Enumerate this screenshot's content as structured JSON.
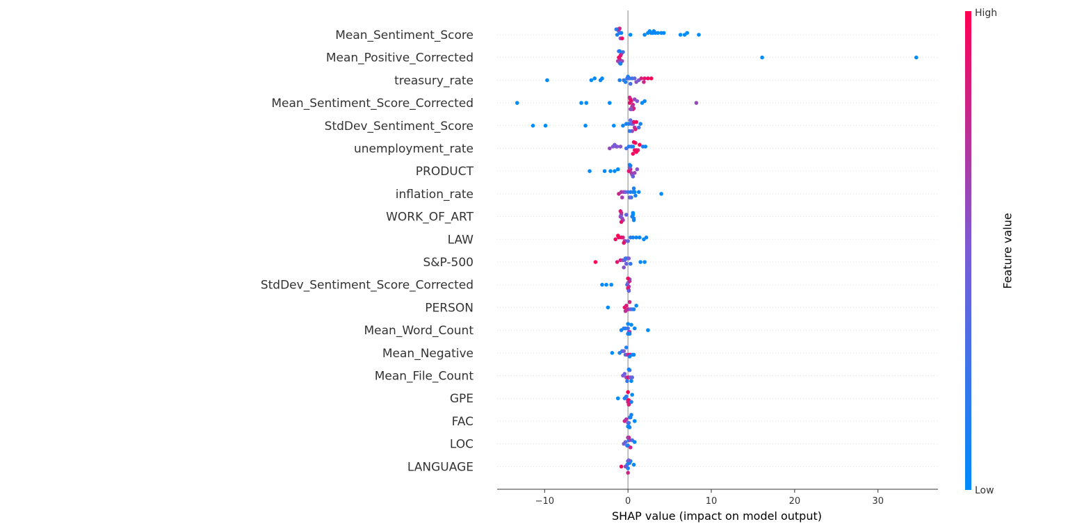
{
  "chart_data": {
    "type": "scatter",
    "subtype": "shap-beeswarm",
    "title": "",
    "xlabel": "SHAP value (impact on model output)",
    "ylabel": "",
    "xlim": [
      -15.7,
      37.2
    ],
    "xticks": [
      -10,
      0,
      10,
      20,
      30
    ],
    "xtick_labels": [
      "−10",
      "0",
      "10",
      "20",
      "30"
    ],
    "grid": false,
    "colorbar": {
      "title": "Feature value",
      "high_label": "High",
      "low_label": "Low",
      "low_color": "#008bfb",
      "high_color": "#ff0052"
    },
    "features": [
      {
        "name": "Mean_Sentiment_Score",
        "points": [
          [
            -1.3,
            0.1
          ],
          [
            -1.0,
            0.15
          ],
          [
            -0.8,
            0.05
          ],
          [
            -1.1,
            0.3
          ],
          [
            -0.9,
            0.5
          ],
          [
            -1.2,
            0.9
          ],
          [
            -0.7,
            0.95
          ],
          [
            -1.0,
            0.8
          ],
          [
            -1.4,
            0.2
          ],
          [
            0.3,
            0.0
          ],
          [
            2.0,
            0.0
          ],
          [
            2.4,
            0.0
          ],
          [
            2.8,
            0.0
          ],
          [
            3.0,
            0.0
          ],
          [
            3.3,
            0.0
          ],
          [
            3.6,
            0.0
          ],
          [
            4.0,
            0.0
          ],
          [
            4.3,
            0.0
          ],
          [
            6.3,
            0.0
          ],
          [
            6.8,
            0.0
          ],
          [
            7.1,
            0.0
          ],
          [
            8.5,
            0.0
          ],
          [
            3.1,
            0.05
          ],
          [
            2.6,
            0.0
          ]
        ]
      },
      {
        "name": "Mean_Positive_Corrected",
        "points": [
          [
            -1.1,
            0.95
          ],
          [
            -0.9,
            0.9
          ],
          [
            -1.0,
            0.85
          ],
          [
            -0.8,
            0.8
          ],
          [
            -1.2,
            0.7
          ],
          [
            -0.7,
            0.6
          ],
          [
            -1.0,
            0.5
          ],
          [
            -1.1,
            0.4
          ],
          [
            -0.6,
            0.3
          ],
          [
            -1.0,
            0.25
          ],
          [
            -0.9,
            0.1
          ],
          [
            -1.0,
            0.05
          ],
          [
            16.1,
            0.0
          ],
          [
            34.6,
            0.0
          ]
        ]
      },
      {
        "name": "treasury_rate",
        "points": [
          [
            -9.7,
            0.0
          ],
          [
            -4.4,
            0.0
          ],
          [
            -4.0,
            0.0
          ],
          [
            -3.3,
            0.05
          ],
          [
            -3.1,
            0.0
          ],
          [
            -1.0,
            0.1
          ],
          [
            -0.5,
            0.2
          ],
          [
            -0.1,
            0.25
          ],
          [
            0.2,
            0.3
          ],
          [
            0.5,
            0.2
          ],
          [
            -0.3,
            0.1
          ],
          [
            0.0,
            0.15
          ],
          [
            0.8,
            0.4
          ],
          [
            1.3,
            0.5
          ],
          [
            1.6,
            0.85
          ],
          [
            2.0,
            0.9
          ],
          [
            2.4,
            0.95
          ],
          [
            2.8,
            1.0
          ],
          [
            1.9,
            0.8
          ],
          [
            1.0,
            0.55
          ],
          [
            0.3,
            0.3
          ]
        ]
      },
      {
        "name": "Mean_Sentiment_Score_Corrected",
        "points": [
          [
            -13.3,
            0.0
          ],
          [
            -5.6,
            0.0
          ],
          [
            -5.0,
            0.0
          ],
          [
            -2.2,
            0.0
          ],
          [
            0.2,
            0.9
          ],
          [
            0.4,
            0.85
          ],
          [
            0.6,
            0.8
          ],
          [
            0.3,
            0.95
          ],
          [
            0.5,
            0.7
          ],
          [
            0.8,
            0.6
          ],
          [
            1.1,
            0.5
          ],
          [
            0.7,
            0.75
          ],
          [
            0.2,
            0.8
          ],
          [
            0.6,
            0.9
          ],
          [
            0.3,
            0.65
          ],
          [
            1.7,
            0.0
          ],
          [
            2.0,
            0.05
          ],
          [
            8.2,
            0.6
          ],
          [
            0.4,
            0.55
          ]
        ]
      },
      {
        "name": "StdDev_Sentiment_Score",
        "points": [
          [
            -11.4,
            0.0
          ],
          [
            -9.9,
            0.0
          ],
          [
            -5.1,
            0.0
          ],
          [
            -1.7,
            0.0
          ],
          [
            -0.6,
            0.05
          ],
          [
            -0.2,
            0.1
          ],
          [
            0.1,
            0.15
          ],
          [
            0.4,
            0.3
          ],
          [
            0.6,
            0.5
          ],
          [
            0.8,
            0.7
          ],
          [
            0.7,
            0.9
          ],
          [
            1.0,
            0.95
          ],
          [
            0.9,
            0.85
          ],
          [
            1.3,
            0.3
          ],
          [
            1.5,
            0.1
          ],
          [
            0.5,
            0.6
          ],
          [
            0.3,
            0.4
          ],
          [
            0.2,
            0.2
          ]
        ]
      },
      {
        "name": "unemployment_rate",
        "points": [
          [
            -2.2,
            0.6
          ],
          [
            -1.8,
            0.5
          ],
          [
            -1.4,
            0.6
          ],
          [
            -1.3,
            0.5
          ],
          [
            -0.9,
            0.55
          ],
          [
            -1.6,
            0.5
          ],
          [
            -0.2,
            0.3
          ],
          [
            0.1,
            0.15
          ],
          [
            0.4,
            0.2
          ],
          [
            0.6,
            0.1
          ],
          [
            0.8,
            0.9
          ],
          [
            1.0,
            0.95
          ],
          [
            1.2,
            0.85
          ],
          [
            1.0,
            1.0
          ],
          [
            0.9,
            0.9
          ],
          [
            1.4,
            1.0
          ],
          [
            1.8,
            0.1
          ],
          [
            2.1,
            0.05
          ],
          [
            0.6,
            0.95
          ],
          [
            0.7,
            1.0
          ]
        ]
      },
      {
        "name": "PRODUCT",
        "points": [
          [
            -4.6,
            0.0
          ],
          [
            -2.8,
            0.0
          ],
          [
            -2.1,
            0.0
          ],
          [
            -1.6,
            0.0
          ],
          [
            -1.2,
            0.0
          ],
          [
            0.1,
            0.9
          ],
          [
            0.3,
            0.8
          ],
          [
            0.4,
            0.7
          ],
          [
            0.2,
            0.55
          ],
          [
            0.5,
            0.6
          ],
          [
            0.8,
            0.6
          ],
          [
            1.1,
            0.55
          ],
          [
            0.3,
            0.2
          ],
          [
            0.6,
            0.4
          ],
          [
            0.2,
            0.1
          ]
        ]
      },
      {
        "name": "inflation_rate",
        "points": [
          [
            -1.1,
            0.8
          ],
          [
            -0.8,
            0.7
          ],
          [
            -0.5,
            0.6
          ],
          [
            -0.3,
            0.5
          ],
          [
            -0.7,
            0.65
          ],
          [
            0.0,
            0.3
          ],
          [
            0.3,
            0.1
          ],
          [
            0.6,
            0.15
          ],
          [
            0.8,
            0.05
          ],
          [
            0.9,
            0.1
          ],
          [
            1.3,
            0.05
          ],
          [
            0.4,
            0.2
          ],
          [
            0.7,
            0.1
          ],
          [
            0.2,
            0.4
          ],
          [
            4.0,
            0.0
          ]
        ]
      },
      {
        "name": "WORK_OF_ART",
        "points": [
          [
            -0.9,
            0.6
          ],
          [
            -0.8,
            0.5
          ],
          [
            -0.7,
            0.55
          ],
          [
            -0.8,
            0.7
          ],
          [
            -0.6,
            0.65
          ],
          [
            -0.9,
            0.85
          ],
          [
            -0.8,
            0.9
          ],
          [
            -0.2,
            0.4
          ],
          [
            0.5,
            0.1
          ],
          [
            0.6,
            0.05
          ],
          [
            0.7,
            0.1
          ],
          [
            0.6,
            0.0
          ],
          [
            0.7,
            0.05
          ]
        ]
      },
      {
        "name": "LAW",
        "points": [
          [
            -1.5,
            0.95
          ],
          [
            -1.1,
            0.9
          ],
          [
            -0.8,
            0.95
          ],
          [
            -0.6,
            0.85
          ],
          [
            -0.4,
            0.8
          ],
          [
            -1.2,
            1.0
          ],
          [
            -0.3,
            0.6
          ],
          [
            0.0,
            0.4
          ],
          [
            0.3,
            0.2
          ],
          [
            0.6,
            0.1
          ],
          [
            1.0,
            0.05
          ],
          [
            1.4,
            0.05
          ],
          [
            1.9,
            0.0
          ],
          [
            2.2,
            0.05
          ],
          [
            -0.5,
            0.9
          ]
        ]
      },
      {
        "name": "S&P-500",
        "points": [
          [
            -3.9,
            1.0
          ],
          [
            -1.3,
            0.9
          ],
          [
            -0.9,
            0.8
          ],
          [
            -0.6,
            0.6
          ],
          [
            -0.4,
            0.4
          ],
          [
            -0.2,
            0.45
          ],
          [
            -0.3,
            0.2
          ],
          [
            -0.1,
            0.3
          ],
          [
            0.1,
            0.5
          ],
          [
            0.3,
            0.2
          ],
          [
            1.5,
            0.0
          ],
          [
            2.0,
            0.0
          ],
          [
            -0.5,
            0.55
          ]
        ]
      },
      {
        "name": "StdDev_Sentiment_Score_Corrected",
        "points": [
          [
            -3.1,
            0.0
          ],
          [
            -2.6,
            0.0
          ],
          [
            -2.0,
            0.0
          ],
          [
            -0.1,
            0.3
          ],
          [
            0.0,
            0.5
          ],
          [
            0.1,
            0.7
          ],
          [
            0.2,
            0.85
          ],
          [
            0.0,
            0.9
          ],
          [
            0.2,
            0.6
          ],
          [
            0.1,
            0.8
          ],
          [
            0.0,
            0.95
          ],
          [
            0.1,
            0.4
          ]
        ]
      },
      {
        "name": "PERSON",
        "points": [
          [
            -2.4,
            0.0
          ],
          [
            -0.4,
            0.9
          ],
          [
            -0.2,
            0.85
          ],
          [
            0.0,
            0.95
          ],
          [
            0.1,
            0.7
          ],
          [
            0.3,
            0.5
          ],
          [
            0.5,
            0.3
          ],
          [
            0.7,
            0.1
          ],
          [
            1.0,
            0.0
          ],
          [
            0.2,
            0.8
          ],
          [
            -0.3,
            0.75
          ]
        ]
      },
      {
        "name": "Mean_Word_Count",
        "points": [
          [
            -0.8,
            0.05
          ],
          [
            -0.5,
            0.1
          ],
          [
            -0.3,
            0.15
          ],
          [
            0.0,
            0.3
          ],
          [
            0.1,
            0.5
          ],
          [
            0.2,
            0.7
          ],
          [
            0.0,
            0.1
          ],
          [
            0.2,
            0.05
          ],
          [
            0.4,
            0.0
          ],
          [
            0.8,
            0.05
          ],
          [
            2.4,
            0.0
          ],
          [
            0.0,
            0.0
          ]
        ]
      },
      {
        "name": "Mean_Negative",
        "points": [
          [
            -1.9,
            0.0
          ],
          [
            -1.0,
            0.1
          ],
          [
            -0.7,
            0.2
          ],
          [
            -0.5,
            0.5
          ],
          [
            -0.3,
            0.3
          ],
          [
            -0.1,
            0.6
          ],
          [
            0.1,
            0.8
          ],
          [
            0.3,
            0.9
          ],
          [
            0.5,
            0.1
          ],
          [
            0.7,
            0.0
          ],
          [
            0.2,
            0.05
          ],
          [
            -0.2,
            0.15
          ]
        ]
      },
      {
        "name": "Mean_File_Count",
        "points": [
          [
            -0.6,
            0.5
          ],
          [
            -0.4,
            0.45
          ],
          [
            -0.2,
            0.6
          ],
          [
            0.0,
            0.8
          ],
          [
            0.1,
            0.9
          ],
          [
            0.3,
            0.55
          ],
          [
            0.5,
            0.4
          ],
          [
            0.2,
            0.3
          ],
          [
            -0.1,
            0.2
          ],
          [
            0.1,
            0.1
          ],
          [
            0.4,
            0.0
          ]
        ]
      },
      {
        "name": "GPE",
        "points": [
          [
            -1.2,
            0.0
          ],
          [
            -0.4,
            0.1
          ],
          [
            -0.2,
            0.2
          ],
          [
            0.0,
            0.9
          ],
          [
            0.1,
            0.95
          ],
          [
            0.0,
            0.8
          ],
          [
            0.2,
            0.9
          ],
          [
            0.4,
            0.1
          ],
          [
            0.5,
            0.0
          ],
          [
            0.0,
            1.0
          ],
          [
            0.1,
            0.85
          ]
        ]
      },
      {
        "name": "FAC",
        "points": [
          [
            -0.4,
            0.8
          ],
          [
            -0.2,
            0.7
          ],
          [
            0.0,
            0.5
          ],
          [
            0.1,
            0.3
          ],
          [
            0.2,
            0.2
          ],
          [
            0.3,
            0.1
          ],
          [
            0.0,
            0.0
          ],
          [
            0.1,
            0.05
          ],
          [
            0.8,
            0.0
          ],
          [
            0.4,
            0.1
          ],
          [
            0.2,
            0.05
          ]
        ]
      },
      {
        "name": "LOC",
        "points": [
          [
            -0.5,
            0.5
          ],
          [
            -0.3,
            0.4
          ],
          [
            -0.1,
            0.2
          ],
          [
            0.0,
            0.1
          ],
          [
            0.1,
            0.0
          ],
          [
            0.2,
            0.6
          ],
          [
            0.3,
            0.8
          ],
          [
            0.5,
            0.3
          ],
          [
            0.8,
            0.05
          ],
          [
            0.1,
            0.9
          ],
          [
            0.0,
            0.7
          ]
        ]
      },
      {
        "name": "LANGUAGE",
        "points": [
          [
            -0.8,
            0.95
          ],
          [
            -0.3,
            0.6
          ],
          [
            -0.1,
            0.3
          ],
          [
            0.0,
            0.1
          ],
          [
            0.1,
            0.0
          ],
          [
            0.2,
            0.1
          ],
          [
            0.0,
            0.2
          ],
          [
            0.3,
            0.05
          ],
          [
            0.7,
            0.0
          ],
          [
            0.1,
            0.5
          ],
          [
            0.0,
            0.8
          ]
        ]
      }
    ]
  }
}
